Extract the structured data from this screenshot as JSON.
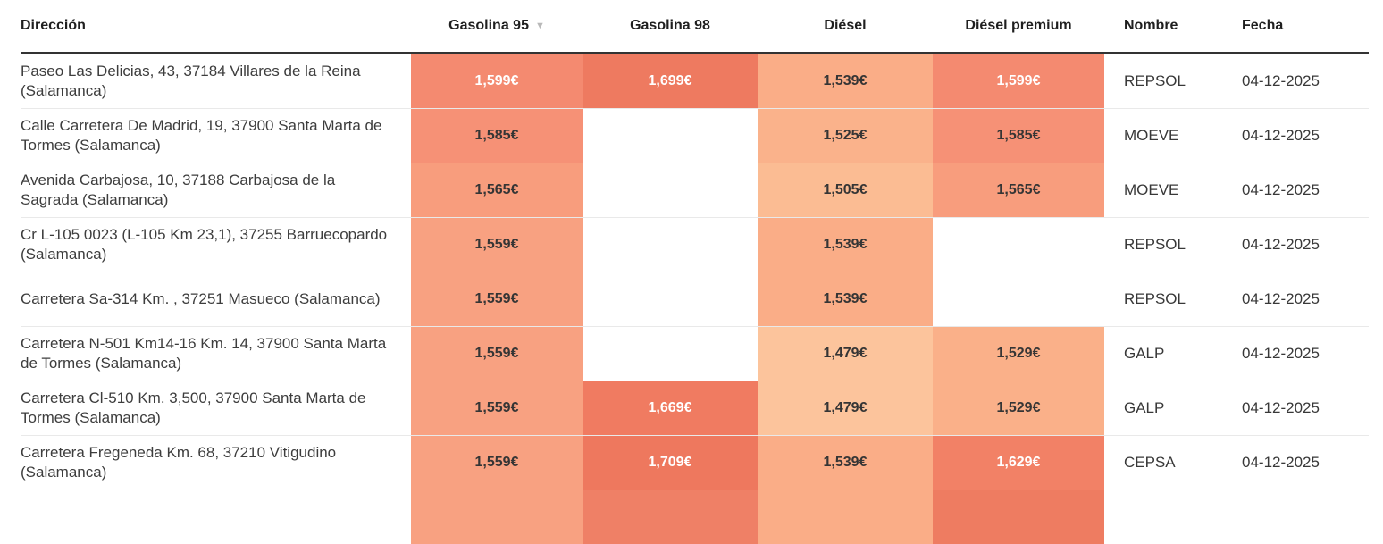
{
  "table": {
    "columns": [
      {
        "label": "Dirección"
      },
      {
        "label": "Gasolina 95",
        "sorted": "desc"
      },
      {
        "label": "Gasolina 98"
      },
      {
        "label": "Diésel"
      },
      {
        "label": "Diésel premium"
      },
      {
        "label": "Nombre"
      },
      {
        "label": "Fecha"
      }
    ],
    "sort_icon": "▼",
    "price_keys": [
      "gasolina-95",
      "gasolina-98",
      "diesel",
      "diesel-premium"
    ],
    "rows": [
      {
        "address": "Paseo Las Delicias, 43, 37184 Villares de la Reina (Salamanca)",
        "prices": [
          {
            "text": "1,599€",
            "value": 1599
          },
          {
            "text": "1,699€",
            "value": 1699
          },
          {
            "text": "1,539€",
            "value": 1539
          },
          {
            "text": "1,599€",
            "value": 1599
          }
        ],
        "name": "REPSOL",
        "date": "04-12-2025"
      },
      {
        "address": "Calle Carretera De Madrid, 19, 37900 Santa Marta de Tormes (Salamanca)",
        "prices": [
          {
            "text": "1,585€",
            "value": 1585
          },
          null,
          {
            "text": "1,525€",
            "value": 1525
          },
          {
            "text": "1,585€",
            "value": 1585
          }
        ],
        "name": "MOEVE",
        "date": "04-12-2025"
      },
      {
        "address": "Avenida Carbajosa, 10, 37188 Carbajosa de la Sagrada (Salamanca)",
        "prices": [
          {
            "text": "1,565€",
            "value": 1565
          },
          null,
          {
            "text": "1,505€",
            "value": 1505
          },
          {
            "text": "1,565€",
            "value": 1565
          }
        ],
        "name": "MOEVE",
        "date": "04-12-2025"
      },
      {
        "address": "Cr L-105 0023 (L-105 Km 23,1), 37255 Barruecopardo (Salamanca)",
        "prices": [
          {
            "text": "1,559€",
            "value": 1559
          },
          null,
          {
            "text": "1,539€",
            "value": 1539
          },
          null
        ],
        "name": "REPSOL",
        "date": "04-12-2025"
      },
      {
        "address": "Carretera Sa-314 Km. , 37251 Masueco (Salamanca)",
        "prices": [
          {
            "text": "1,559€",
            "value": 1559
          },
          null,
          {
            "text": "1,539€",
            "value": 1539
          },
          null
        ],
        "name": "REPSOL",
        "date": "04-12-2025"
      },
      {
        "address": "Carretera N-501 Km14-16 Km. 14, 37900 Santa Marta de Tormes (Salamanca)",
        "prices": [
          {
            "text": "1,559€",
            "value": 1559
          },
          null,
          {
            "text": "1,479€",
            "value": 1479
          },
          {
            "text": "1,529€",
            "value": 1529
          }
        ],
        "name": "GALP",
        "date": "04-12-2025"
      },
      {
        "address": "Carretera Cl-510 Km. 3,500, 37900 Santa Marta de Tormes (Salamanca)",
        "prices": [
          {
            "text": "1,559€",
            "value": 1559
          },
          {
            "text": "1,669€",
            "value": 1669
          },
          {
            "text": "1,479€",
            "value": 1479
          },
          {
            "text": "1,529€",
            "value": 1529
          }
        ],
        "name": "GALP",
        "date": "04-12-2025"
      },
      {
        "address": "Carretera Fregeneda Km. 68, 37210 Vitigudino (Salamanca)",
        "prices": [
          {
            "text": "1,559€",
            "value": 1559
          },
          {
            "text": "1,709€",
            "value": 1709
          },
          {
            "text": "1,539€",
            "value": 1539
          },
          {
            "text": "1,629€",
            "value": 1629
          }
        ],
        "name": "CEPSA",
        "date": "04-12-2025"
      }
    ],
    "partial_row_colors": [
      "#f8a181",
      "#ef8066",
      "#faad87",
      "#ee7c61"
    ]
  },
  "heatmap": {
    "value_colors": {
      "1479": "#fcc49c",
      "1505": "#fbbc93",
      "1525": "#fab28b",
      "1529": "#fab089",
      "1539": "#faad87",
      "1559": "#f8a181",
      "1565": "#f89d7d",
      "1585": "#f69176",
      "1599": "#f48a70",
      "1629": "#f28166",
      "1669": "#f07b61",
      "1699": "#ee7a60",
      "1709": "#ee785e"
    },
    "white_text_min": 1599,
    "dark_text_color": "#353535",
    "white_text_color": "#ffffff",
    "header_border_color": "#333333"
  }
}
